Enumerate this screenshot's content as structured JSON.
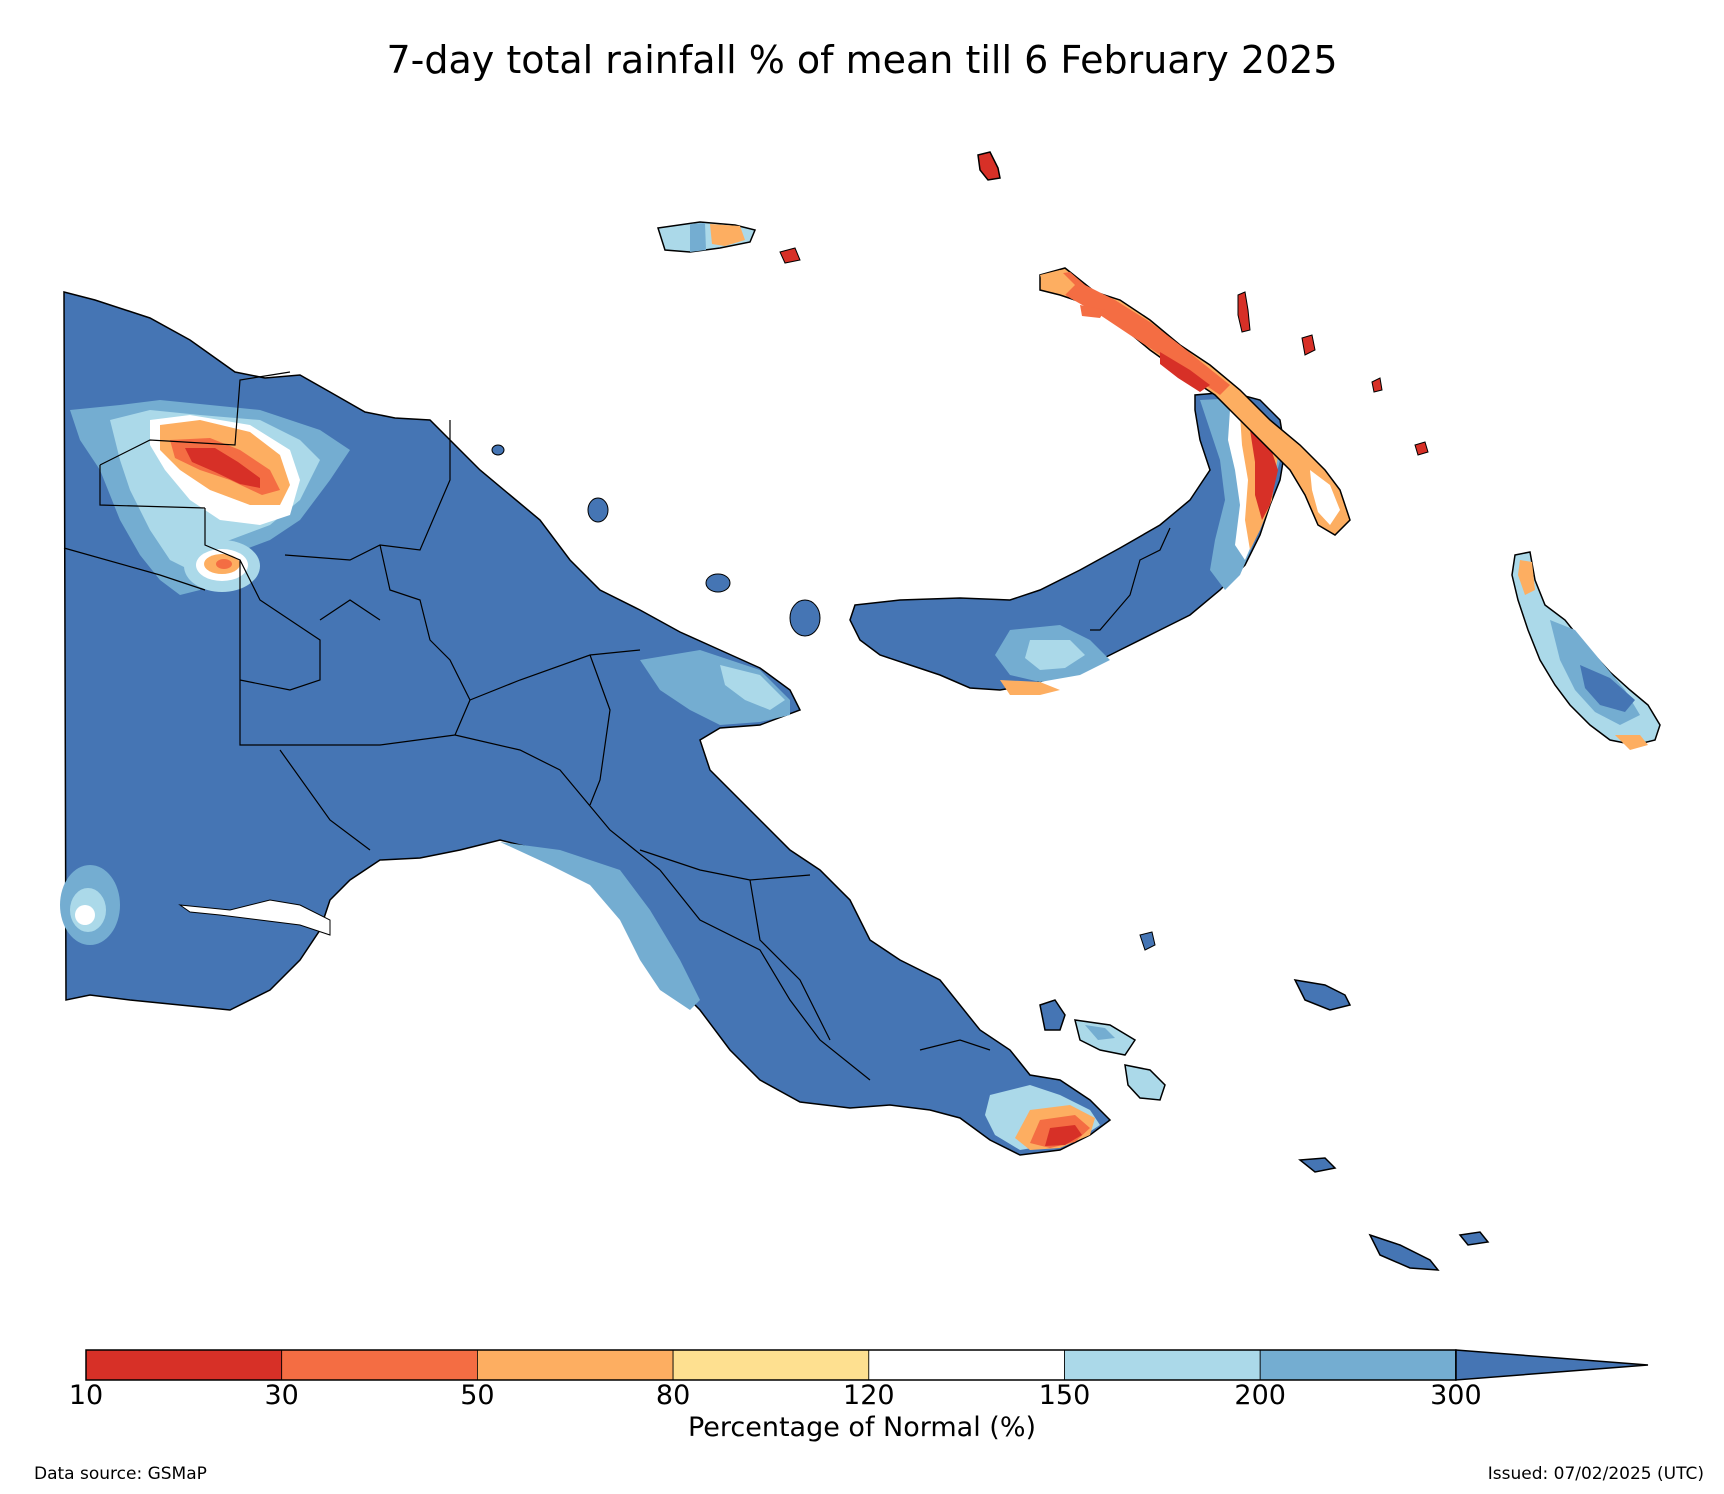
{
  "title": "7-day total rainfall % of mean till 6 February 2025",
  "colors": {
    "very_dry": "#d73027",
    "dry": "#f46d43",
    "below": "#fdae61",
    "near_low": "#fee090",
    "normal": "#ffffff",
    "above": "#abd9e9",
    "wet": "#74add1",
    "very_wet": "#4575b4"
  },
  "legend": {
    "label": "Percentage of Normal (%)",
    "ticks": [
      "10",
      "30",
      "50",
      "80",
      "120",
      "150",
      "200",
      "300"
    ],
    "bins": [
      {
        "from": 10,
        "to": 30,
        "color": "#d73027"
      },
      {
        "from": 30,
        "to": 50,
        "color": "#f46d43"
      },
      {
        "from": 50,
        "to": 80,
        "color": "#fdae61"
      },
      {
        "from": 80,
        "to": 120,
        "color": "#fee090"
      },
      {
        "from": 120,
        "to": 150,
        "color": "#ffffff"
      },
      {
        "from": 150,
        "to": 200,
        "color": "#abd9e9"
      },
      {
        "from": 200,
        "to": 300,
        "color": "#74add1"
      },
      {
        "from": 300,
        "to": null,
        "color": "#4575b4"
      }
    ]
  },
  "footer": {
    "source": "Data source: GSMaP",
    "issued": "Issued: 07/02/2025 (UTC)"
  }
}
